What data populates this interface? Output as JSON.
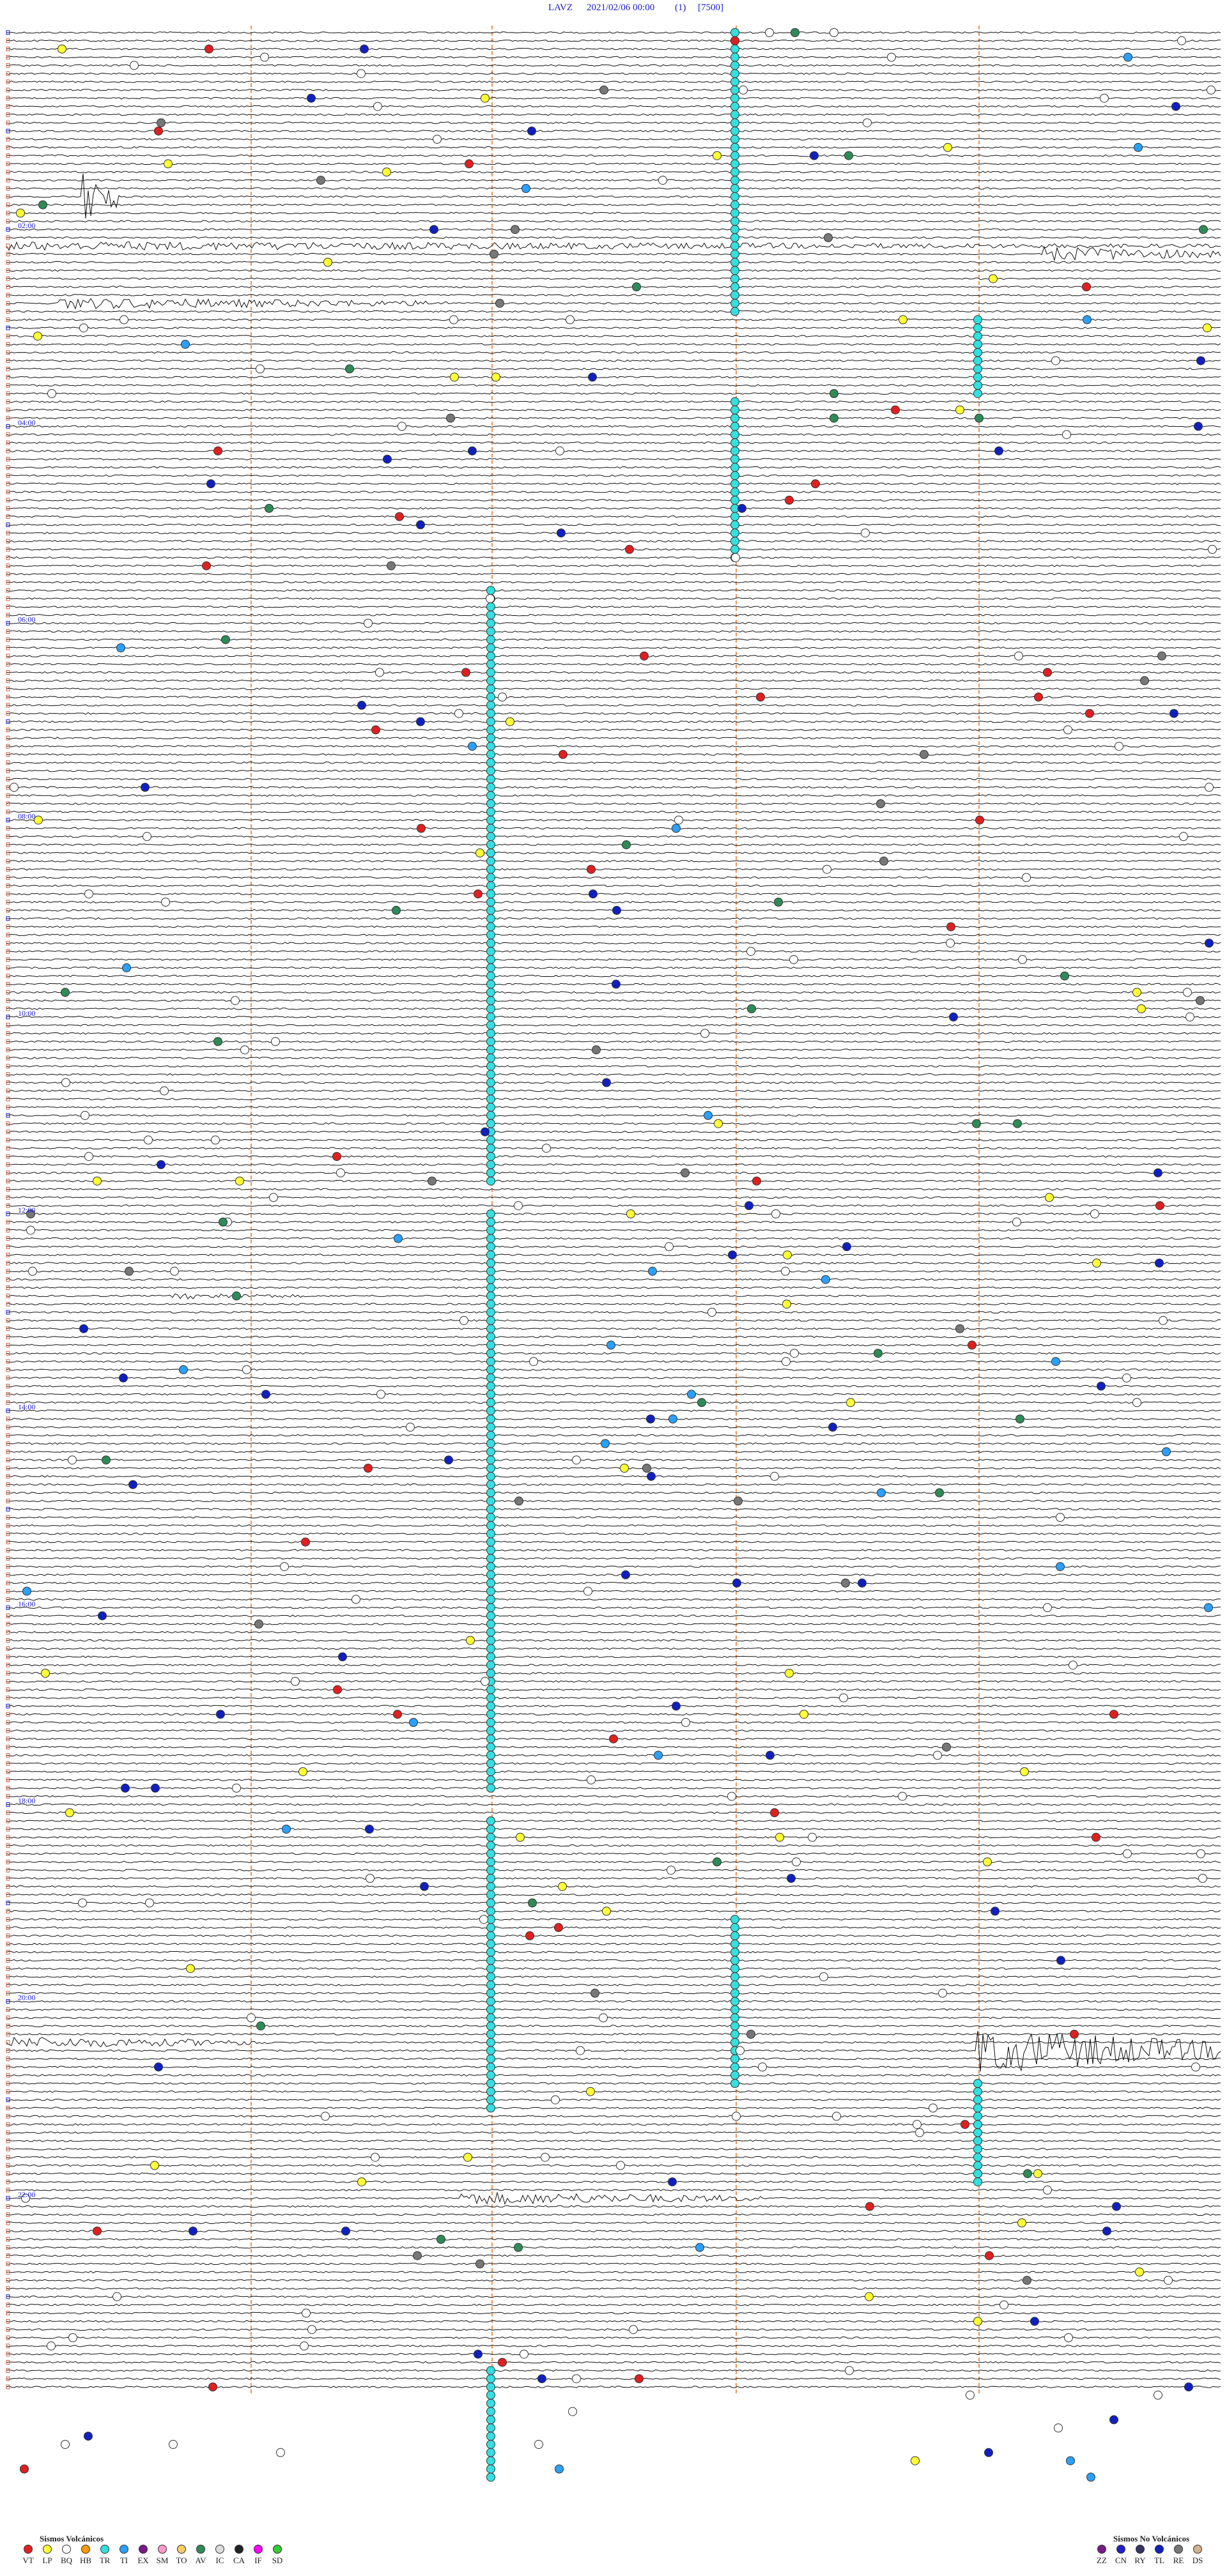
{
  "header": {
    "station": "LAVZ",
    "date": "2021/02/06 00:00",
    "channel": "(1)",
    "scale": "[7500]"
  },
  "hour_labels": [
    "02:00",
    "04:00",
    "06:00",
    "08:00",
    "10:00",
    "12:00",
    "14:00",
    "16:00",
    "18:00",
    "20:00",
    "22:00"
  ],
  "legend_volcanic": {
    "title": "Sismos Volcánicos",
    "items": [
      {
        "code": "VT",
        "color": "#e02020"
      },
      {
        "code": "LP",
        "color": "#ffff33"
      },
      {
        "code": "BQ",
        "color": "#ffffff"
      },
      {
        "code": "HB",
        "color": "#ff9900"
      },
      {
        "code": "TR",
        "color": "#33e0e0"
      },
      {
        "code": "TI",
        "color": "#2aa0ff"
      },
      {
        "code": "EX",
        "color": "#7a1a8a"
      },
      {
        "code": "SM",
        "color": "#ff99cc"
      },
      {
        "code": "TO",
        "color": "#ffcc66"
      },
      {
        "code": "AV",
        "color": "#2e8b57"
      },
      {
        "code": "IC",
        "color": "#dddddd"
      },
      {
        "code": "CA",
        "color": "#222222"
      },
      {
        "code": "IF",
        "color": "#ff00ff"
      },
      {
        "code": "SD",
        "color": "#33cc33"
      }
    ]
  },
  "legend_non_volcanic": {
    "title": "Sismos No Volcánicos",
    "items": [
      {
        "code": "ZZ",
        "color": "#7a1a8a"
      },
      {
        "code": "CN",
        "color": "#1f1fcc"
      },
      {
        "code": "RY",
        "color": "#333366"
      },
      {
        "code": "TL",
        "color": "#1020c0"
      },
      {
        "code": "RE",
        "color": "#777777"
      },
      {
        "code": "DS",
        "color": "#d2b48c"
      }
    ]
  }
}
